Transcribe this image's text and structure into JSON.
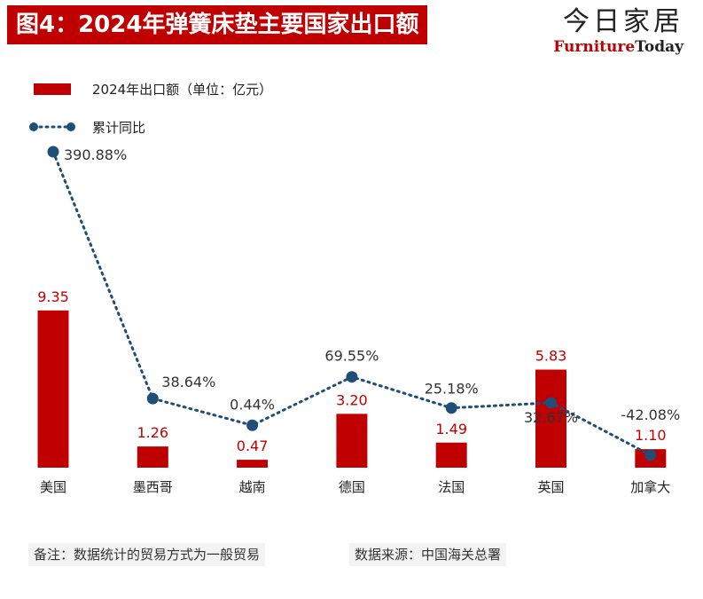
{
  "title": "图4：2024年弹簧床垫主要国家出口额",
  "brand": {
    "cn": "今日家居",
    "en_part1": "Furniture",
    "en_part2": "Today"
  },
  "colors": {
    "bar": "#c00000",
    "line": "#1f4e79",
    "title_bg": "#c00000"
  },
  "chart_data": {
    "type": "bar",
    "categories": [
      "美国",
      "墨西哥",
      "越南",
      "德国",
      "法国",
      "英国",
      "加拿大"
    ],
    "series": [
      {
        "name": "2024年出口额（单位：亿元）",
        "type": "bar",
        "values": [
          9.35,
          1.26,
          0.47,
          3.2,
          1.49,
          5.83,
          1.1
        ],
        "labels": [
          "9.35",
          "1.26",
          "0.47",
          "3.20",
          "1.49",
          "5.83",
          "1.10"
        ]
      },
      {
        "name": "累计同比",
        "type": "line",
        "style": "dotted",
        "values": [
          390.88,
          38.64,
          0.44,
          69.55,
          25.18,
          32.67,
          -42.08
        ],
        "labels": [
          "390.88%",
          "38.64%",
          "0.44%",
          "69.55%",
          "25.18%",
          "32.67%",
          "-42.08%"
        ]
      }
    ],
    "bar_ylim": [
      0,
      20
    ],
    "line_ylim": [
      -60,
      420
    ],
    "legend_position": "top-left"
  },
  "notes": {
    "left": "备注：数据统计的贸易方式为一般贸易",
    "right": "数据来源：中国海关总署"
  }
}
